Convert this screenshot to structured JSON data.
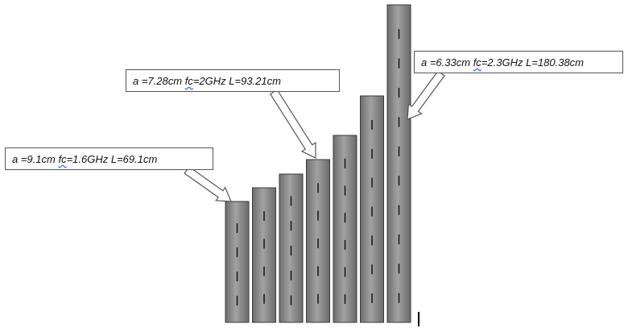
{
  "colors": {
    "bar_fill_dark": "#6e6e6e",
    "bar_fill_light": "#9c9c9c",
    "bar_stroke": "#3a3a3a",
    "slot": "#1a1a1a",
    "callout_border": "#555555",
    "arrow_fill": "#ffffff",
    "arrow_stroke": "#555555"
  },
  "waveguides": [
    {
      "a_cm": 9.1
    },
    {
      "a_cm": null
    },
    {
      "a_cm": null
    },
    {
      "a_cm": 7.28
    },
    {
      "a_cm": null
    },
    {
      "a_cm": null
    },
    {
      "a_cm": 6.33
    }
  ],
  "callouts": [
    {
      "parts": [
        "a =9.1cm ",
        "fc",
        "=1.6GHz L=69.1cm"
      ],
      "points_to_waveguide": 0
    },
    {
      "parts": [
        "a =7.28cm ",
        "fc",
        "=2GHz L=93.21cm"
      ],
      "points_to_waveguide": 3
    },
    {
      "parts": [
        "a =6.33cm ",
        "fc",
        "=2.3GHz L=180.38cm"
      ],
      "points_to_waveguide": 6
    }
  ]
}
